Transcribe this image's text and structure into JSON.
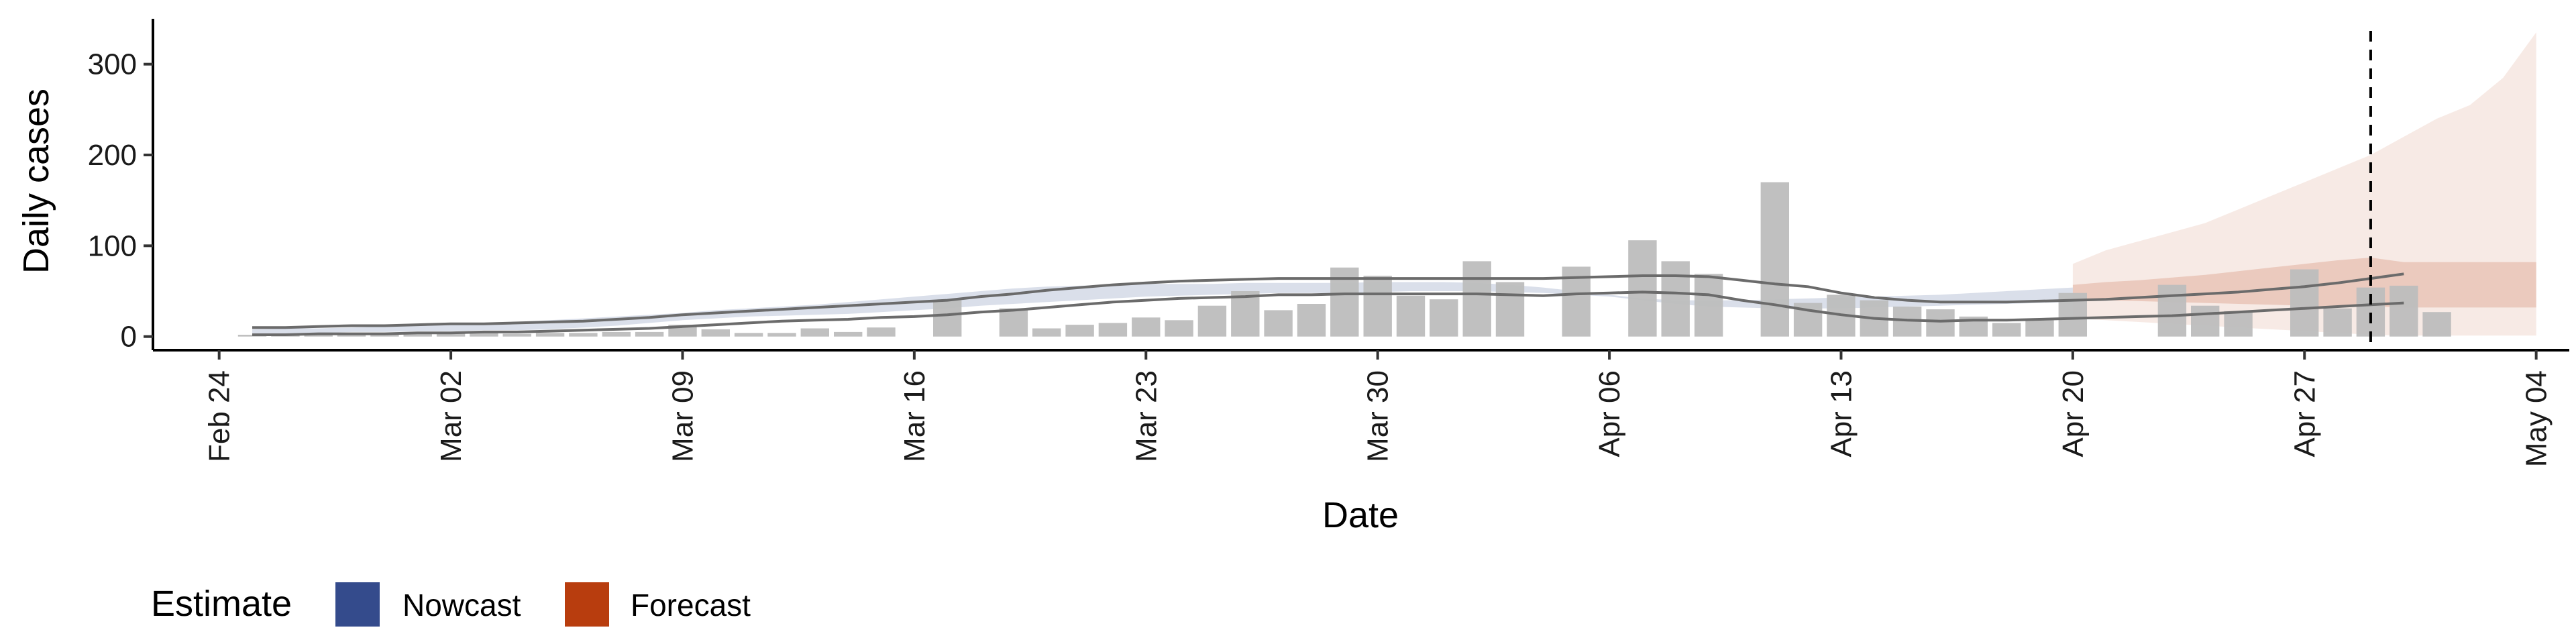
{
  "chart_data": {
    "type": "bar",
    "xlabel": "Date",
    "ylabel": "Daily cases",
    "ylim": [
      -15,
      350
    ],
    "xlim": [
      "2020-02-22",
      "2020-05-05"
    ],
    "y_ticks": [
      0,
      100,
      200,
      300
    ],
    "x_ticks": [
      {
        "date": "2020-02-24",
        "label": "Feb 24"
      },
      {
        "date": "2020-03-02",
        "label": "Mar 02"
      },
      {
        "date": "2020-03-09",
        "label": "Mar 09"
      },
      {
        "date": "2020-03-16",
        "label": "Mar 16"
      },
      {
        "date": "2020-03-23",
        "label": "Mar 23"
      },
      {
        "date": "2020-03-30",
        "label": "Mar 30"
      },
      {
        "date": "2020-04-06",
        "label": "Apr 06"
      },
      {
        "date": "2020-04-13",
        "label": "Apr 13"
      },
      {
        "date": "2020-04-20",
        "label": "Apr 20"
      },
      {
        "date": "2020-04-27",
        "label": "Apr 27"
      },
      {
        "date": "2020-05-04",
        "label": "May 04"
      }
    ],
    "grid": false,
    "legend": {
      "title": "Estimate",
      "placement": "bottom-left",
      "items": [
        {
          "label": "Nowcast",
          "color": "#344b8c"
        },
        {
          "label": "Forecast",
          "color": "#b83d0e"
        }
      ]
    },
    "vline": {
      "date": "2020-04-29",
      "style": "dashed"
    },
    "colors": {
      "bar": "#bdbdbd",
      "nowcast": "#344b8c",
      "forecast": "#b83d0e",
      "line": "#6b6b6b"
    },
    "observed": {
      "start_date": "2020-02-25",
      "values": [
        2,
        2,
        2,
        2,
        3,
        4,
        5,
        4,
        3,
        4,
        4,
        5,
        5,
        13,
        8,
        4,
        4,
        9,
        5,
        10,
        0,
        40,
        0,
        31,
        9,
        13,
        15,
        21,
        18,
        34,
        50,
        29,
        36,
        76,
        67,
        45,
        41,
        83,
        60,
        0,
        77,
        0,
        106,
        83,
        69,
        0,
        170,
        37,
        46,
        40,
        33,
        30,
        22,
        15,
        18,
        48,
        0,
        0,
        57,
        34,
        28,
        0,
        74,
        31,
        54,
        56,
        27
      ]
    },
    "nowcast_band": {
      "start_date": "2020-02-25",
      "lower": [
        3,
        3,
        4,
        5,
        5,
        6,
        6,
        7,
        7,
        8,
        10,
        12,
        15,
        18,
        20,
        22,
        23,
        24,
        25,
        27,
        29,
        31,
        34,
        36,
        38,
        40,
        42,
        44,
        45,
        46,
        47,
        48,
        48,
        48,
        49,
        50,
        50,
        50,
        49,
        48,
        46,
        44,
        40,
        36,
        33,
        32,
        31,
        31,
        31,
        32,
        33,
        34,
        35,
        36,
        37,
        38
      ],
      "upper": [
        8,
        9,
        9,
        10,
        11,
        12,
        13,
        14,
        16,
        18,
        20,
        22,
        24,
        26,
        29,
        31,
        33,
        35,
        38,
        41,
        44,
        47,
        50,
        53,
        55,
        56,
        57,
        58,
        58,
        58,
        59,
        59,
        59,
        59,
        60,
        60,
        60,
        59,
        57,
        54,
        50,
        46,
        42,
        40,
        40,
        40,
        41,
        42,
        43,
        44,
        45,
        46,
        48,
        50,
        52,
        54
      ]
    },
    "forecast_band_outer": {
      "start_date": "2020-04-20",
      "lower": [
        20,
        18,
        16,
        14,
        12,
        10,
        8,
        6,
        4,
        2,
        1,
        1,
        1,
        1,
        1
      ],
      "upper": [
        80,
        95,
        105,
        115,
        125,
        140,
        155,
        170,
        185,
        200,
        220,
        240,
        255,
        285,
        335
      ]
    },
    "forecast_band_inner": {
      "start_date": "2020-04-20",
      "lower": [
        40,
        40,
        39,
        38,
        37,
        36,
        35,
        34,
        33,
        33,
        32,
        32,
        32,
        32,
        32
      ],
      "upper": [
        57,
        60,
        62,
        65,
        68,
        72,
        76,
        80,
        84,
        87,
        82,
        82,
        82,
        82,
        82
      ]
    },
    "upper_line": {
      "start_date": "2020-02-25",
      "values": [
        10,
        10,
        11,
        12,
        12,
        13,
        14,
        14,
        15,
        16,
        17,
        19,
        21,
        24,
        26,
        28,
        30,
        32,
        34,
        36,
        38,
        40,
        44,
        47,
        51,
        54,
        57,
        59,
        61,
        62,
        63,
        64,
        64,
        64,
        64,
        64,
        64,
        64,
        64,
        64,
        65,
        66,
        67,
        67,
        66,
        62,
        58,
        55,
        48,
        43,
        40,
        38,
        38,
        38,
        39,
        40,
        41,
        43,
        45,
        47,
        49,
        52,
        55,
        59,
        64,
        69
      ]
    },
    "lower_line": {
      "start_date": "2020-02-25",
      "values": [
        2,
        2,
        3,
        3,
        3,
        4,
        4,
        5,
        5,
        6,
        7,
        8,
        9,
        11,
        13,
        15,
        17,
        18,
        19,
        21,
        22,
        24,
        27,
        29,
        32,
        35,
        38,
        40,
        42,
        43,
        44,
        46,
        46,
        47,
        47,
        47,
        47,
        47,
        46,
        45,
        47,
        48,
        49,
        48,
        46,
        40,
        35,
        29,
        24,
        20,
        18,
        17,
        18,
        18,
        19,
        20,
        21,
        22,
        23,
        25,
        27,
        29,
        31,
        33,
        35,
        37
      ]
    }
  }
}
